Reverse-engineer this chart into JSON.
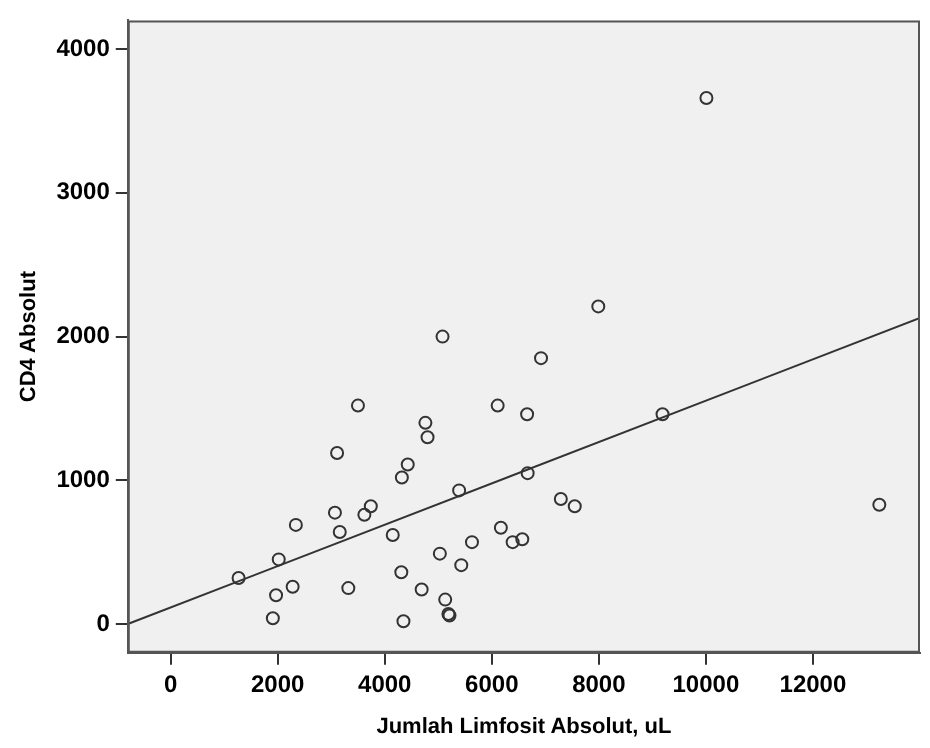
{
  "chart_data": {
    "type": "scatter",
    "xlabel": "Jumlah Limfosit Absolut, uL",
    "ylabel": "CD4 Absolut",
    "xlim": [
      -800,
      14000
    ],
    "ylim": [
      -200,
      4200
    ],
    "xticks": [
      0,
      2000,
      4000,
      6000,
      8000,
      10000,
      12000
    ],
    "yticks": [
      0,
      1000,
      2000,
      3000,
      4000
    ],
    "grid": false,
    "legend": false,
    "marker": "circle",
    "series": [
      {
        "color": "#333333",
        "x": [
          1270,
          2020,
          1970,
          1910,
          2280,
          2340,
          3110,
          3500,
          3070,
          3160,
          3320,
          3620,
          3740,
          4150,
          4310,
          4350,
          4320,
          4430,
          4760,
          4800,
          5080,
          5030,
          4690,
          5130,
          5190,
          5210,
          5390,
          5430,
          5630,
          6110,
          6170,
          6390,
          6570,
          6660,
          6670,
          6920,
          7290,
          7550,
          7990,
          9190,
          13240,
          10010
        ],
        "values": [
          320,
          450,
          200,
          40,
          260,
          690,
          1190,
          1520,
          775,
          640,
          250,
          760,
          820,
          620,
          360,
          20,
          1020,
          1110,
          1400,
          1300,
          2000,
          490,
          240,
          170,
          70,
          60,
          930,
          410,
          570,
          1520,
          670,
          570,
          590,
          1460,
          1050,
          1850,
          870,
          820,
          2210,
          1460,
          830,
          3660
        ]
      },
      {
        "type": "line",
        "color": "#333333",
        "marker": "none",
        "line_style": "solid",
        "x": [
          -800,
          14000
        ],
        "values": [
          0,
          2130
        ]
      }
    ]
  }
}
